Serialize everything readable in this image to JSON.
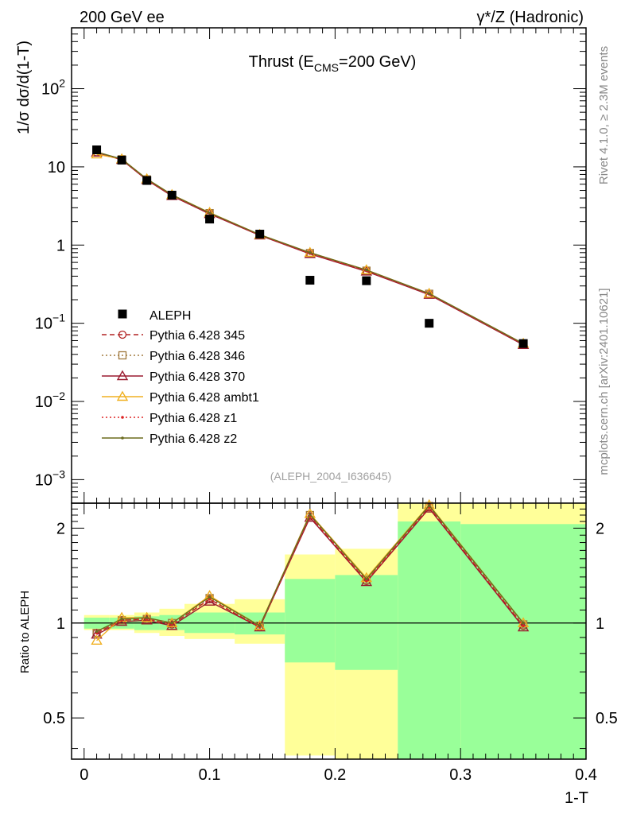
{
  "header": {
    "left": "200 GeV ee",
    "right": "γ*/Z (Hadronic)"
  },
  "side": {
    "version": "Rivet 4.1.0, ≥ 2.3M events",
    "site": "mcplots.cern.ch [arXiv:2401.10621]"
  },
  "chart_data": [
    {
      "type": "scatter",
      "title": "Thrust (E_CMS=200 GeV)",
      "ylabel": "1/σ dσ/d(1-T)",
      "yscale": "log",
      "ylim": [
        0.0005,
        600
      ],
      "xlim": [
        -0.01,
        0.4
      ],
      "yticks": [
        "10^-3",
        "10^-2",
        "10^-1",
        "1",
        "10",
        "10^2"
      ],
      "annotation": "(ALEPH_2004_I636645)",
      "legend_position": "lower-left",
      "x": [
        0.01,
        0.03,
        0.05,
        0.07,
        0.1,
        0.14,
        0.18,
        0.225,
        0.275,
        0.35
      ],
      "data": {
        "name": "ALEPH",
        "values": [
          16.5,
          12.2,
          6.7,
          4.35,
          2.15,
          1.38,
          0.355,
          0.35,
          0.1,
          0.055
        ]
      },
      "series": [
        {
          "name": "Pythia 6.428 345",
          "color": "#b22222",
          "marker": "circle",
          "dash": "dashed",
          "values": [
            15.4,
            12.4,
            6.9,
            4.3,
            2.55,
            1.34,
            0.78,
            0.47,
            0.235,
            0.054
          ]
        },
        {
          "name": "Pythia 6.428 346",
          "color": "#a0783c",
          "marker": "square",
          "dash": "dotted",
          "values": [
            15.4,
            12.5,
            6.9,
            4.35,
            2.56,
            1.35,
            0.79,
            0.47,
            0.238,
            0.054
          ]
        },
        {
          "name": "Pythia 6.428 370",
          "color": "#9b1c30",
          "marker": "triangle",
          "dash": "solid",
          "values": [
            15.3,
            12.3,
            6.8,
            4.25,
            2.5,
            1.33,
            0.77,
            0.46,
            0.232,
            0.053
          ]
        },
        {
          "name": "Pythia 6.428 ambt1",
          "color": "#f0b020",
          "marker": "triangle",
          "dash": "solid",
          "values": [
            14.5,
            12.6,
            7.0,
            4.4,
            2.6,
            1.36,
            0.8,
            0.48,
            0.24,
            0.055
          ]
        },
        {
          "name": "Pythia 6.428 z1",
          "color": "#dd2222",
          "marker": "dot",
          "dash": "dotted",
          "values": [
            15.4,
            12.4,
            6.85,
            4.3,
            2.54,
            1.34,
            0.78,
            0.47,
            0.236,
            0.054
          ]
        },
        {
          "name": "Pythia 6.428 z2",
          "color": "#6b6b1f",
          "marker": "dot",
          "dash": "solid",
          "values": [
            15.5,
            12.6,
            7.0,
            4.4,
            2.58,
            1.36,
            0.8,
            0.48,
            0.24,
            0.055
          ]
        }
      ]
    },
    {
      "type": "line",
      "ylabel": "Ratio to ALEPH",
      "xlabel": "1-T",
      "yscale": "log",
      "ylim": [
        0.37,
        2.4
      ],
      "yticks": [
        "0.5",
        "1",
        "2"
      ],
      "xticks": [
        "0",
        "0.1",
        "0.2",
        "0.3",
        "0.4"
      ],
      "bin_edges": [
        0,
        0.02,
        0.04,
        0.06,
        0.08,
        0.12,
        0.16,
        0.2,
        0.25,
        0.3,
        0.4
      ],
      "band_stat": [
        [
          0.96,
          1.04
        ],
        [
          0.96,
          1.04
        ],
        [
          0.95,
          1.05
        ],
        [
          0.95,
          1.06
        ],
        [
          0.93,
          1.08
        ],
        [
          0.92,
          1.08
        ],
        [
          0.75,
          1.38
        ],
        [
          0.71,
          1.42
        ],
        [
          0.37,
          2.1
        ],
        [
          0.37,
          2.06
        ]
      ],
      "band_total": [
        [
          0.95,
          1.06
        ],
        [
          0.95,
          1.06
        ],
        [
          0.93,
          1.08
        ],
        [
          0.91,
          1.11
        ],
        [
          0.89,
          1.15
        ],
        [
          0.86,
          1.19
        ],
        [
          0.38,
          1.65
        ],
        [
          0.37,
          1.72
        ],
        [
          0.37,
          2.4
        ],
        [
          0.37,
          2.4
        ]
      ],
      "x": [
        0.01,
        0.03,
        0.05,
        0.07,
        0.1,
        0.14,
        0.18,
        0.225,
        0.275,
        0.35
      ],
      "series": [
        {
          "name": "Pythia 6.428 345",
          "values": [
            0.93,
            1.02,
            1.03,
            0.99,
            1.19,
            0.97,
            2.18,
            1.36,
            2.33,
            0.98
          ]
        },
        {
          "name": "Pythia 6.428 346",
          "values": [
            0.93,
            1.02,
            1.03,
            1.0,
            1.2,
            0.98,
            2.2,
            1.37,
            2.35,
            0.99
          ]
        },
        {
          "name": "Pythia 6.428 370",
          "values": [
            0.92,
            1.01,
            1.02,
            0.98,
            1.17,
            0.97,
            2.16,
            1.35,
            2.31,
            0.97
          ]
        },
        {
          "name": "Pythia 6.428 ambt1",
          "values": [
            0.88,
            1.04,
            1.04,
            1.0,
            1.22,
            0.98,
            2.22,
            1.39,
            2.37,
            1.0
          ]
        },
        {
          "name": "Pythia 6.428 z1",
          "values": [
            0.93,
            1.02,
            1.03,
            0.99,
            1.19,
            0.97,
            2.18,
            1.36,
            2.33,
            0.98
          ]
        },
        {
          "name": "Pythia 6.428 z2",
          "values": [
            0.94,
            1.03,
            1.04,
            1.0,
            1.21,
            0.98,
            2.21,
            1.38,
            2.36,
            1.0
          ]
        }
      ]
    }
  ]
}
